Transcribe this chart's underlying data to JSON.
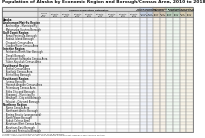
{
  "title": "Population of Alaska by Economic Region and Borough/Census Area, 2010 to 2018",
  "background_color": "#ffffff",
  "title_fontsize": 3.2,
  "body_fontsize": 1.8,
  "header_fontsize": 1.7,
  "footnote": "Average 2014. All estimates are based on 2010 geography.\nSource: Alaska Department of Labor and Workforce Development, Research and Analysis Section.",
  "footnote_fontsize": 1.5,
  "group_labels": [
    "Alaska Population\nCensus vs Estimate",
    "Net Domestic\nMigration",
    "Population\nChange",
    "Annual Rate of\nPopulation Change"
  ],
  "col_headers_main": [
    "Census\nApril\n2010",
    "Estimate\nJuly\n2011",
    "Estimate\nJuly\n2012",
    "Estimate\nJuly\n2013",
    "Estimate\nJuly\n2014",
    "Estimate\nJuly\n2015",
    "Estimate\nJuly\n2016",
    "Estimate\nJuly\n2017",
    "Estimate\nJuly\n2018"
  ],
  "col_headers_g1": [
    "Census\n2010",
    "2017\nEstimate"
  ],
  "col_headers_g2": [
    "2010-\n2017",
    "2010-\n2018"
  ],
  "col_headers_g3": [
    "2016-\n2017",
    "2017-\n2018"
  ],
  "col_headers_g4": [
    "2016-\n2017",
    "2017-\n2018"
  ],
  "header_main_label": "Annual Population Estimates",
  "header_colors": [
    "#c6d0e0",
    "#d4c8b4",
    "#bcd0bc",
    "#d8ceb4"
  ],
  "header_main_color": "#d8d8d8",
  "row_alt1": "#f5f5f5",
  "row_alt2": "#ffffff",
  "regions": [
    {
      "name": "Alaska",
      "indent": 0,
      "bold": true
    },
    {
      "name": "Anchorage/Mat-Su Region",
      "indent": 0,
      "bold": true
    },
    {
      "name": " Anchorage - Municipality",
      "indent": 1,
      "bold": false
    },
    {
      "name": " Matanuska-Susitna Borough",
      "indent": 1,
      "bold": false
    },
    {
      "name": "Gulf Coast Region",
      "indent": 0,
      "bold": true
    },
    {
      "name": " Kenai Peninsula Borough",
      "indent": 1,
      "bold": false
    },
    {
      "name": " Kodiak Island Borough",
      "indent": 1,
      "bold": false
    },
    {
      "name": " Chugach Census Area",
      "indent": 1,
      "bold": false
    },
    {
      "name": " Copper River Census Area",
      "indent": 1,
      "bold": false
    },
    {
      "name": "Interior Region",
      "indent": 0,
      "bold": true
    },
    {
      "name": " Fairbanks North Star Borough",
      "indent": 1,
      "bold": false
    },
    {
      "name": " Denali Borough",
      "indent": 1,
      "bold": false
    },
    {
      "name": " Southeast Fairbanks Census Area",
      "indent": 1,
      "bold": false
    },
    {
      "name": " Yukon-Koyukuk Census Area",
      "indent": 1,
      "bold": false
    },
    {
      "name": "Southwest Region",
      "indent": 0,
      "bold": true
    },
    {
      "name": " Bethel Census Area",
      "indent": 1,
      "bold": false
    },
    {
      "name": " Kusilvak Census Area",
      "indent": 1,
      "bold": false
    },
    {
      "name": " Bristol Bay Borough",
      "indent": 1,
      "bold": false
    },
    {
      "name": "Southeast Region",
      "indent": 0,
      "bold": true
    },
    {
      "name": " Juneau Borough",
      "indent": 1,
      "bold": false
    },
    {
      "name": " Hoonah-Angoon Census Area",
      "indent": 1,
      "bold": false
    },
    {
      "name": " Petersburg Census Area",
      "indent": 1,
      "bold": false
    },
    {
      "name": " Sitka City and Borough",
      "indent": 1,
      "bold": false
    },
    {
      "name": " Skagway - Municipality",
      "indent": 1,
      "bold": false
    },
    {
      "name": " Wrangell - City and Borough",
      "indent": 1,
      "bold": false
    },
    {
      "name": " Yakutat - City and Borough",
      "indent": 1,
      "bold": false
    },
    {
      "name": "Northern Region",
      "indent": 0,
      "bold": true
    },
    {
      "name": " Nome Census Area",
      "indent": 1,
      "bold": false
    },
    {
      "name": " Northwest Arctic Borough",
      "indent": 1,
      "bold": false
    },
    {
      "name": " Bering Straits (unorganized)",
      "indent": 1,
      "bold": false
    },
    {
      "name": " North Slope Borough",
      "indent": 1,
      "bold": false
    },
    {
      "name": " Kobuk Census Area",
      "indent": 1,
      "bold": false
    },
    {
      "name": " Aleutians West Census Area",
      "indent": 1,
      "bold": false
    },
    {
      "name": " Aleutians East Borough",
      "indent": 1,
      "bold": false
    },
    {
      "name": " Lake and Peninsula Borough",
      "indent": 1,
      "bold": false
    }
  ]
}
